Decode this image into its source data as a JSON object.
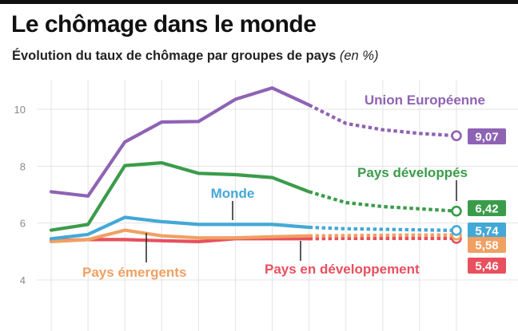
{
  "header": {
    "title": "Le chômage dans le monde",
    "subtitle": "Évolution du taux de chômage par groupes de pays",
    "subtitle_unit": "(en %)"
  },
  "chart_data": {
    "type": "line",
    "ylim": [
      4,
      11
    ],
    "yticks": [
      4,
      6,
      8,
      10
    ],
    "grid": true,
    "x_points": 12,
    "projection_start_index": 8,
    "series": [
      {
        "name": "Union Européenne",
        "key": "ue",
        "color": "#8e63b4",
        "values": [
          7.1,
          6.95,
          8.85,
          9.55,
          9.57,
          10.35,
          10.75,
          10.15,
          9.5,
          9.28,
          9.15,
          9.07
        ],
        "end_label": "9,07"
      },
      {
        "name": "Pays développés",
        "key": "dev",
        "color": "#3a9c4a",
        "values": [
          5.75,
          5.95,
          8.02,
          8.12,
          7.75,
          7.7,
          7.6,
          7.1,
          6.72,
          6.58,
          6.5,
          6.42
        ],
        "end_label": "6,42"
      },
      {
        "name": "Monde",
        "key": "monde",
        "color": "#44a8d6",
        "values": [
          5.45,
          5.6,
          6.2,
          6.05,
          5.95,
          5.95,
          5.95,
          5.85,
          5.8,
          5.78,
          5.76,
          5.74
        ],
        "end_label": "5,74"
      },
      {
        "name": "Pays émergents",
        "key": "emerg",
        "color": "#f0a062",
        "values": [
          5.35,
          5.42,
          5.75,
          5.55,
          5.48,
          5.48,
          5.52,
          5.55,
          5.56,
          5.57,
          5.58,
          5.58
        ],
        "end_label": "5,58"
      },
      {
        "name": "Pays en développement",
        "key": "pedev",
        "color": "#e8505d",
        "values": [
          5.38,
          5.42,
          5.42,
          5.38,
          5.35,
          5.45,
          5.45,
          5.45,
          5.46,
          5.46,
          5.46,
          5.46
        ],
        "end_label": "5,46"
      }
    ]
  }
}
